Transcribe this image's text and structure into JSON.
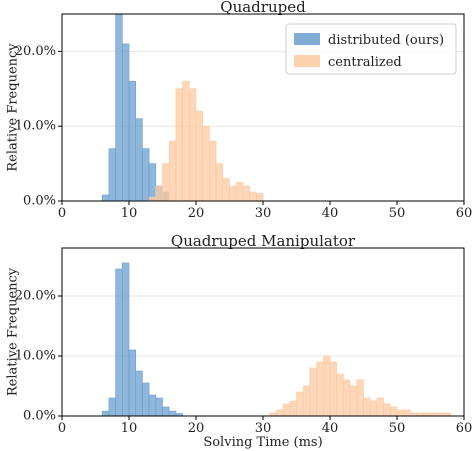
{
  "chart_data": [
    {
      "type": "histogram",
      "title": "Quadruped",
      "xlabel": "",
      "ylabel": "Relative Frequency",
      "xlim": [
        0,
        60
      ],
      "ylim": [
        0,
        0.25
      ],
      "xticks": [
        0,
        10,
        20,
        30,
        40,
        50,
        60
      ],
      "yticks": [
        0,
        0.1,
        0.2
      ],
      "ytick_labels": [
        "0.0%",
        "10.0%",
        "20.0%"
      ],
      "bin_width": 1,
      "grid": "horizontal",
      "legend": {
        "placement": "top-right",
        "entries": [
          "distributed (ours)",
          "centralized"
        ]
      },
      "series": [
        {
          "name": "distributed (ours)",
          "color": "#6a9fcf",
          "x_start": 6,
          "values": [
            0.008,
            0.07,
            0.25,
            0.21,
            0.16,
            0.11,
            0.07,
            0.05,
            0.02,
            0.012
          ]
        },
        {
          "name": "centralized",
          "color": "#fcc9a0",
          "x_start": 13,
          "values": [
            0.005,
            0.02,
            0.05,
            0.08,
            0.15,
            0.16,
            0.15,
            0.12,
            0.1,
            0.08,
            0.05,
            0.03,
            0.02,
            0.025,
            0.02,
            0.012,
            0.01
          ]
        }
      ]
    },
    {
      "type": "histogram",
      "title": "Quadruped Manipulator",
      "xlabel": "Solving Time (ms)",
      "ylabel": "Relative Frequency",
      "xlim": [
        0,
        60
      ],
      "ylim": [
        0,
        0.28
      ],
      "xticks": [
        0,
        10,
        20,
        30,
        40,
        50,
        60
      ],
      "yticks": [
        0,
        0.1,
        0.2
      ],
      "ytick_labels": [
        "0.0%",
        "10.0%",
        "20.0%"
      ],
      "bin_width": 1,
      "grid": "horizontal",
      "series": [
        {
          "name": "distributed (ours)",
          "color": "#6a9fcf",
          "x_start": 6,
          "values": [
            0.008,
            0.03,
            0.245,
            0.255,
            0.11,
            0.075,
            0.055,
            0.035,
            0.03,
            0.015,
            0.008,
            0.004
          ]
        },
        {
          "name": "centralized",
          "color": "#fcc9a0",
          "x_start": 31,
          "values": [
            0.005,
            0.01,
            0.02,
            0.025,
            0.04,
            0.05,
            0.08,
            0.09,
            0.1,
            0.09,
            0.07,
            0.06,
            0.05,
            0.06,
            0.03,
            0.025,
            0.03,
            0.02,
            0.015,
            0.01,
            0.01,
            0.005,
            0.005,
            0.005,
            0.005,
            0.005,
            0.005
          ]
        }
      ]
    }
  ]
}
